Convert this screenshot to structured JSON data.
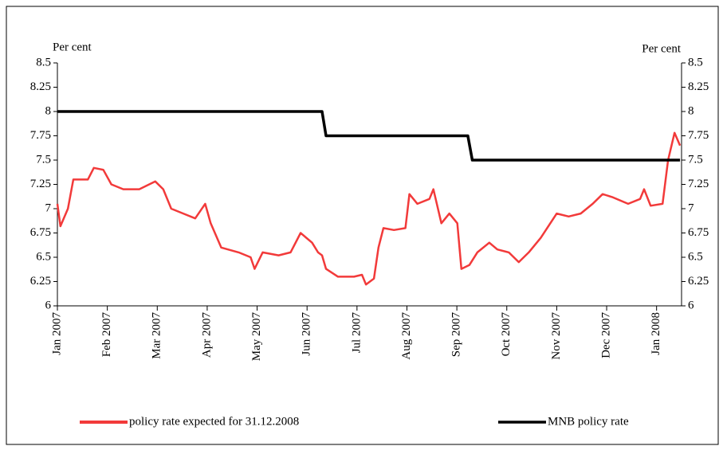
{
  "chart_data": {
    "type": "line",
    "y_label": "Per cent",
    "y2_label": "Per cent",
    "xlim": [
      0,
      12.5
    ],
    "xticks": [
      {
        "value": 0,
        "label": "Jan 2007"
      },
      {
        "value": 1,
        "label": "Feb 2007"
      },
      {
        "value": 2,
        "label": "Mar 2007"
      },
      {
        "value": 3,
        "label": "Apr 2007"
      },
      {
        "value": 4,
        "label": "May 2007"
      },
      {
        "value": 5,
        "label": "Jun 2007"
      },
      {
        "value": 6,
        "label": "Jul 2007"
      },
      {
        "value": 7,
        "label": "Aug 2007"
      },
      {
        "value": 8,
        "label": "Sep 2007"
      },
      {
        "value": 9,
        "label": "Oct 2007"
      },
      {
        "value": 10,
        "label": "Nov 2007"
      },
      {
        "value": 11,
        "label": "Dec 2007"
      },
      {
        "value": 12,
        "label": "Jan 2008"
      }
    ],
    "ylim": [
      6,
      8.5
    ],
    "yticks": [
      6,
      6.25,
      6.5,
      6.75,
      7,
      7.25,
      7.5,
      7.75,
      8,
      8.25,
      8.5
    ],
    "y2lim": [
      6,
      8.5
    ],
    "y2ticks": [
      6,
      6.25,
      6.5,
      6.75,
      7,
      7.25,
      7.5,
      7.75,
      8,
      8.25,
      8.5
    ],
    "legend": "bottom",
    "series": [
      {
        "name": "policy rate expected for 31.12.2008",
        "color": "#f23a3a",
        "x": [
          0,
          0.06,
          0.21,
          0.32,
          0.61,
          0.73,
          0.92,
          1.08,
          1.32,
          1.64,
          1.96,
          2.12,
          2.28,
          2.52,
          2.76,
          2.96,
          3.07,
          3.28,
          3.63,
          3.87,
          3.95,
          4.11,
          4.43,
          4.67,
          4.87,
          5.1,
          5.22,
          5.3,
          5.38,
          5.62,
          5.94,
          6.1,
          6.18,
          6.34,
          6.43,
          6.53,
          6.74,
          6.97,
          7.05,
          7.21,
          7.45,
          7.53,
          7.69,
          7.85,
          8.01,
          8.09,
          8.25,
          8.41,
          8.65,
          8.81,
          9.04,
          9.24,
          9.44,
          9.68,
          10.0,
          10.24,
          10.48,
          10.72,
          10.92,
          11.11,
          11.43,
          11.67,
          11.75,
          11.88,
          12.12,
          12.23,
          12.36,
          12.47
        ],
        "values": [
          7.05,
          6.82,
          7.0,
          7.3,
          7.3,
          7.42,
          7.4,
          7.25,
          7.2,
          7.2,
          7.28,
          7.2,
          7.0,
          6.95,
          6.9,
          7.05,
          6.85,
          6.6,
          6.55,
          6.5,
          6.38,
          6.55,
          6.52,
          6.55,
          6.75,
          6.65,
          6.55,
          6.52,
          6.38,
          6.3,
          6.3,
          6.32,
          6.22,
          6.28,
          6.6,
          6.8,
          6.78,
          6.8,
          7.15,
          7.05,
          7.1,
          7.2,
          6.85,
          6.95,
          6.85,
          6.38,
          6.42,
          6.55,
          6.65,
          6.58,
          6.55,
          6.45,
          6.55,
          6.7,
          6.95,
          6.92,
          6.95,
          7.05,
          7.15,
          7.12,
          7.05,
          7.1,
          7.2,
          7.03,
          7.05,
          7.5,
          7.78,
          7.65
        ]
      },
      {
        "name": "MNB policy rate",
        "color": "#000000",
        "x": [
          0,
          5.3,
          5.38,
          8.22,
          8.31,
          12.47
        ],
        "values": [
          8,
          8,
          7.75,
          7.75,
          7.5,
          7.5
        ]
      }
    ]
  }
}
